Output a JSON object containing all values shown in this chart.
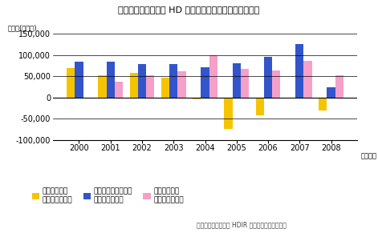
{
  "title": "図表：富士フイルム HD のセグメント別営業利益の推移",
  "unit_label": "単位：(百万円)",
  "source_label": "出典：富士フイルム HDIR 資料から日本総研作成",
  "year_label": "（年度）",
  "years": [
    2000,
    2001,
    2002,
    2003,
    2004,
    2005,
    2006,
    2007,
    2008
  ],
  "imaging": [
    70000,
    52000,
    58000,
    47000,
    -5000,
    -75000,
    -42000,
    -3000,
    -30000
  ],
  "information": [
    84000,
    84000,
    78000,
    78000,
    72000,
    80000,
    96000,
    126000,
    23000
  ],
  "document": [
    null,
    38000,
    52000,
    62000,
    100000,
    67000,
    63000,
    87000,
    52000
  ],
  "imaging_color": "#f5c400",
  "information_color": "#3355cc",
  "document_color": "#f5a0c8",
  "ylim": [
    -100000,
    150000
  ],
  "yticks": [
    -100000,
    -50000,
    0,
    50000,
    100000,
    150000
  ],
  "legend_imaging": "イメージング\nソリューション",
  "legend_information": "インフォメーション\nソリューション",
  "legend_document": "ドキュメント\nソリューション",
  "bar_width": 0.26,
  "background_color": "#ffffff",
  "grid_color": "#000000"
}
